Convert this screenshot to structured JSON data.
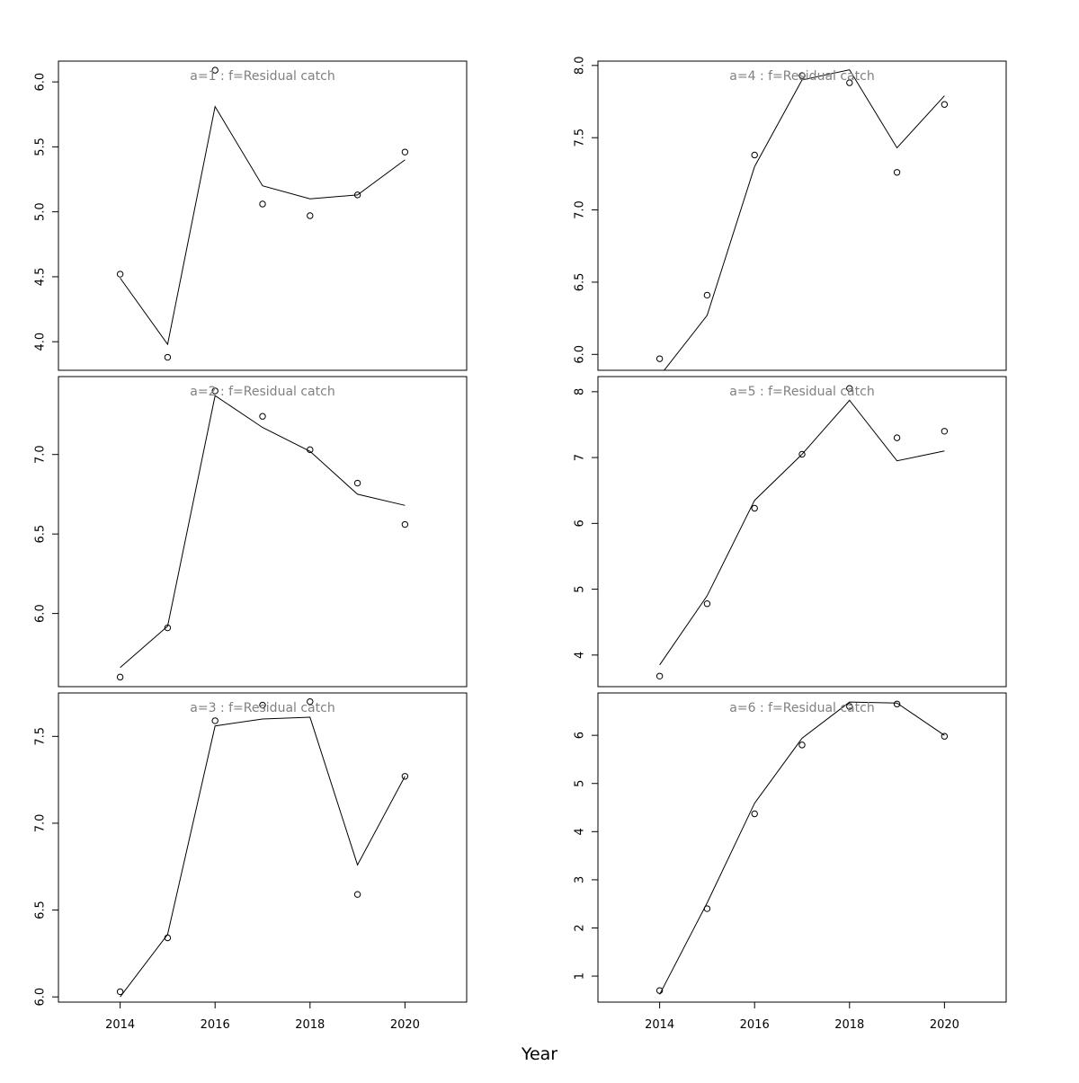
{
  "xlabel": "Year",
  "x_ticks": [
    2014,
    2016,
    2018,
    2020
  ],
  "colors": {
    "line": "#000000",
    "points": "#000000",
    "panel_title": "#808080",
    "frame": "#000000"
  },
  "chart_data": [
    {
      "type": "line",
      "title": "a=1  :  f=Residual catch",
      "x": [
        2014,
        2015,
        2016,
        2017,
        2018,
        2019,
        2020
      ],
      "series": [
        {
          "values": [
            4.49,
            3.98,
            5.81,
            5.2,
            5.1,
            5.13,
            5.4
          ]
        },
        {
          "values": [
            4.52,
            3.88,
            6.09,
            5.06,
            4.97,
            5.13,
            5.46
          ],
          "markers_only": true
        }
      ],
      "ylim": [
        3.78,
        6.16
      ],
      "y_ticks": [
        4.0,
        4.5,
        5.0,
        5.5,
        6.0
      ],
      "y_tick_labels": [
        "4.0",
        "4.5",
        "5.0",
        "5.5",
        "6.0"
      ],
      "xlim": [
        2012.7,
        2021.3
      ]
    },
    {
      "type": "line",
      "title": "a=2  :  f=Residual catch",
      "x": [
        2014,
        2015,
        2016,
        2017,
        2018,
        2019,
        2020
      ],
      "series": [
        {
          "values": [
            5.66,
            5.92,
            7.37,
            7.17,
            7.02,
            6.75,
            6.68
          ]
        },
        {
          "values": [
            5.6,
            5.91,
            7.4,
            7.24,
            7.03,
            6.82,
            6.56
          ],
          "markers_only": true
        }
      ],
      "ylim": [
        5.54,
        7.49
      ],
      "y_ticks": [
        6.0,
        6.5,
        7.0
      ],
      "y_tick_labels": [
        "6.0",
        "6.5",
        "7.0"
      ],
      "xlim": [
        2012.7,
        2021.3
      ]
    },
    {
      "type": "line",
      "title": "a=3  :  f=Residual catch",
      "x": [
        2014,
        2015,
        2016,
        2017,
        2018,
        2019,
        2020
      ],
      "series": [
        {
          "values": [
            6.0,
            6.36,
            7.56,
            7.6,
            7.61,
            6.76,
            7.27
          ]
        },
        {
          "values": [
            6.03,
            6.34,
            7.59,
            7.68,
            7.7,
            6.59,
            7.27
          ],
          "markers_only": true
        }
      ],
      "ylim": [
        5.97,
        7.75
      ],
      "y_ticks": [
        6.0,
        6.5,
        7.0,
        7.5
      ],
      "y_tick_labels": [
        "6.0",
        "6.5",
        "7.0",
        "7.5"
      ],
      "xlim": [
        2012.7,
        2021.3
      ]
    },
    {
      "type": "line",
      "title": "a=4  :  f=Residual catch",
      "x": [
        2014,
        2015,
        2016,
        2017,
        2018,
        2019,
        2020
      ],
      "series": [
        {
          "values": [
            5.85,
            6.27,
            7.3,
            7.9,
            7.97,
            7.43,
            7.79
          ]
        },
        {
          "values": [
            5.97,
            6.41,
            7.38,
            7.93,
            7.88,
            7.26,
            7.73
          ],
          "markers_only": true
        }
      ],
      "ylim": [
        5.89,
        8.03
      ],
      "y_ticks": [
        6.0,
        6.5,
        7.0,
        7.5,
        8.0
      ],
      "y_tick_labels": [
        "6.0",
        "6.5",
        "7.0",
        "7.5",
        "8.0"
      ],
      "xlim": [
        2012.7,
        2021.3
      ]
    },
    {
      "type": "line",
      "title": "a=5  :  f=Residual catch",
      "x": [
        2014,
        2015,
        2016,
        2017,
        2018,
        2019,
        2020
      ],
      "series": [
        {
          "values": [
            3.85,
            4.9,
            6.35,
            7.05,
            7.87,
            6.95,
            7.1
          ]
        },
        {
          "values": [
            3.68,
            4.78,
            6.23,
            7.05,
            8.05,
            7.3,
            7.4
          ],
          "markers_only": true
        }
      ],
      "ylim": [
        3.52,
        8.23
      ],
      "y_ticks": [
        4,
        5,
        6,
        7,
        8
      ],
      "y_tick_labels": [
        "4",
        "5",
        "6",
        "7",
        "8"
      ],
      "xlim": [
        2012.7,
        2021.3
      ]
    },
    {
      "type": "line",
      "title": "a=6  :  f=Residual catch",
      "x": [
        2014,
        2015,
        2016,
        2017,
        2018,
        2019,
        2020
      ],
      "series": [
        {
          "values": [
            0.62,
            2.52,
            4.59,
            5.94,
            6.69,
            6.67,
            6.0
          ]
        },
        {
          "values": [
            0.7,
            2.4,
            4.37,
            5.8,
            6.6,
            6.65,
            5.98
          ],
          "markers_only": true
        }
      ],
      "ylim": [
        0.46,
        6.88
      ],
      "y_ticks": [
        1,
        2,
        3,
        4,
        5,
        6
      ],
      "y_tick_labels": [
        "1",
        "2",
        "3",
        "4",
        "5",
        "6"
      ],
      "xlim": [
        2012.7,
        2021.3
      ]
    }
  ]
}
